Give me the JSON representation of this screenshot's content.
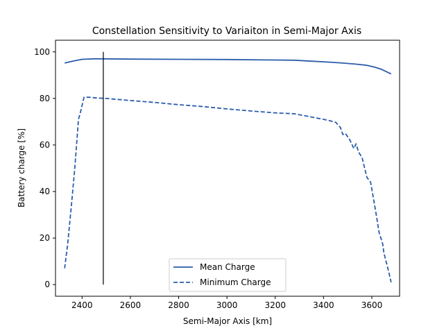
{
  "chart_data": {
    "type": "line",
    "title": "Constellation Sensitivity to Variaiton in Semi-Major Axis",
    "xlabel": "Semi-Major Axis [km]",
    "ylabel": "Battery charge [%]",
    "xlim": [
      2290,
      3715
    ],
    "ylim": [
      -5,
      105
    ],
    "xticks": [
      2400,
      2600,
      2800,
      3000,
      3200,
      3400,
      3600
    ],
    "yticks": [
      0,
      20,
      40,
      60,
      80,
      100
    ],
    "grid": false,
    "legend_position": "lower center",
    "vertical_marker": {
      "x": 2488,
      "y_range": [
        0,
        100
      ],
      "color": "#000000"
    },
    "series": [
      {
        "name": "Mean Charge",
        "style": "solid",
        "color": "#2a5caa",
        "x": [
          2328,
          2360,
          2400,
          2450,
          2488,
          2600,
          2800,
          3000,
          3200,
          3280,
          3350,
          3420,
          3480,
          3540,
          3580,
          3610,
          3640,
          3660,
          3680
        ],
        "y": [
          95.2,
          96.0,
          96.8,
          97.0,
          97.0,
          96.9,
          96.8,
          96.7,
          96.5,
          96.4,
          96.0,
          95.6,
          95.2,
          94.7,
          94.2,
          93.5,
          92.5,
          91.5,
          90.5
        ]
      },
      {
        "name": "Minimum Charge",
        "style": "dashed",
        "color": "#2a5caa",
        "x": [
          2328,
          2340,
          2355,
          2370,
          2385,
          2393,
          2408,
          2430,
          2460,
          2500,
          2600,
          2700,
          2800,
          2900,
          3000,
          3100,
          3200,
          3280,
          3350,
          3410,
          3450,
          3470,
          3480,
          3490,
          3500,
          3510,
          3525,
          3535,
          3545,
          3560,
          3575,
          3580,
          3595,
          3610,
          3620,
          3630,
          3645,
          3650,
          3660,
          3670,
          3680
        ],
        "y": [
          7,
          17,
          33,
          50,
          71,
          74,
          80.5,
          80.5,
          80.2,
          80.0,
          79.1,
          78.3,
          77.3,
          76.5,
          75.5,
          74.6,
          73.8,
          73.4,
          72.0,
          70.8,
          69.8,
          67.5,
          64.5,
          65.0,
          63.5,
          62.0,
          58.5,
          60.5,
          57.0,
          54.5,
          48.0,
          46.0,
          44.0,
          35.0,
          29.0,
          22.5,
          17.5,
          13.5,
          9.5,
          5.5,
          1.0
        ]
      }
    ]
  }
}
